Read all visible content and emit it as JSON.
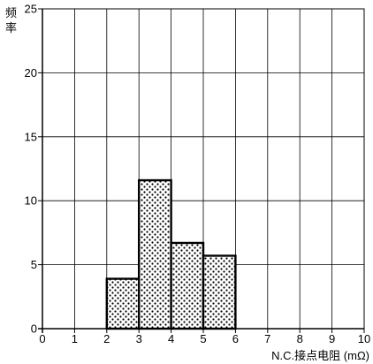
{
  "chart_data": {
    "type": "bar",
    "xlabel": "N.C.接点电阻 (mΩ)",
    "ylabel_chars": [
      "频",
      "率"
    ],
    "x_ticks": [
      "0",
      "1",
      "2",
      "3",
      "4",
      "5",
      "6",
      "7",
      "8",
      "9",
      "10"
    ],
    "y_ticks": [
      "0",
      "5",
      "10",
      "15",
      "20",
      "25"
    ],
    "xlim": [
      0,
      10
    ],
    "ylim": [
      0,
      25
    ],
    "grid": true,
    "bins": [
      {
        "x0": 2,
        "x1": 3,
        "value": 3.9
      },
      {
        "x0": 3,
        "x1": 4,
        "value": 11.6
      },
      {
        "x0": 4,
        "x1": 5,
        "value": 6.7
      },
      {
        "x0": 5,
        "x1": 6,
        "value": 5.7
      }
    ],
    "bar_fill": "dotted",
    "colors": {
      "axis": "#000000",
      "grid": "#000000",
      "bar_edge": "#000000",
      "dots": "#000000"
    }
  }
}
